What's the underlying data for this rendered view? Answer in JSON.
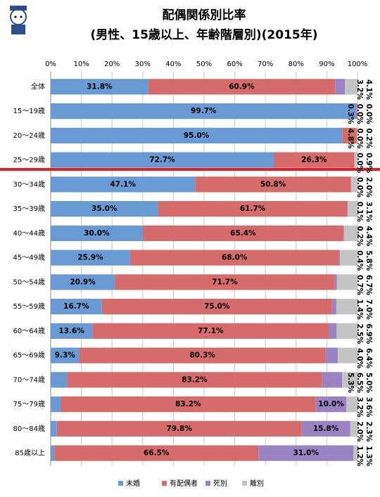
{
  "chart_data": {
    "type": "stacked-bar-horizontal",
    "title": "配偶関係別比率",
    "subtitle": "(男性、15歳以上、年齢階層別)(2015年)",
    "categories": [
      "全体",
      "15～19歳",
      "20～24歳",
      "25～29歳",
      "30～34歳",
      "35～39歳",
      "40～44歳",
      "45～49歳",
      "50～54歳",
      "55～59歳",
      "60～64歳",
      "65～69歳",
      "70～74歳",
      "75～79歳",
      "80～84歳",
      "85歳以上"
    ],
    "series": [
      {
        "name": "未婚",
        "color": "#6a9ad4",
        "values": [
          31.8,
          99.7,
          95.0,
          72.7,
          47.1,
          35.0,
          30.0,
          25.9,
          20.9,
          16.7,
          13.6,
          9.3,
          5.3,
          3.2,
          2.0,
          1.2
        ],
        "value_labels": [
          "31.8%",
          "99.7%",
          "95.0%",
          "72.7%",
          "47.1%",
          "35.0%",
          "30.0%",
          "25.9%",
          "20.9%",
          "16.7%",
          "13.6%",
          "9.3%",
          "5.3%",
          "3.2%",
          "2.0%",
          "1.2%"
        ]
      },
      {
        "name": "有配偶者",
        "color": "#d66b6b",
        "values": [
          60.9,
          0.3,
          4.8,
          26.3,
          50.8,
          61.7,
          65.4,
          68.0,
          71.7,
          75.0,
          77.1,
          80.3,
          83.2,
          83.2,
          79.8,
          66.5
        ],
        "value_labels": [
          "60.9%",
          "0.3%",
          "4.8%",
          "26.3%",
          "50.8%",
          "61.7%",
          "65.4%",
          "68.0%",
          "71.7%",
          "75.0%",
          "77.1%",
          "80.3%",
          "83.2%",
          "83.2%",
          "79.8%",
          "66.5%"
        ]
      },
      {
        "name": "死別",
        "color": "#9a83c2",
        "values": [
          3.2,
          0.0,
          0.0,
          0.0,
          0.0,
          0.1,
          0.2,
          0.4,
          0.7,
          1.4,
          2.5,
          4.0,
          6.5,
          10.0,
          15.8,
          31.0
        ],
        "value_labels": [
          "3.2%",
          "0.0%",
          "0.0%",
          "0.0%",
          "0.0%",
          "0.1%",
          "0.2%",
          "0.4%",
          "0.7%",
          "1.4%",
          "2.5%",
          "4.0%",
          "6.5%",
          "10.0%",
          "15.8%",
          "31.0%"
        ]
      },
      {
        "name": "離別",
        "color": "#c4c4c4",
        "values": [
          4.1,
          0.0,
          0.2,
          0.9,
          2.0,
          3.1,
          4.4,
          5.8,
          6.7,
          7.0,
          6.9,
          6.4,
          5.0,
          3.6,
          2.3,
          1.3
        ],
        "value_labels": [
          "4.1%",
          "0.0%",
          "0.2%",
          "0.9%",
          "2.0%",
          "3.1%",
          "4.4%",
          "5.8%",
          "6.7%",
          "7.0%",
          "6.9%",
          "6.4%",
          "5.0%",
          "3.6%",
          "2.3%",
          "1.3%"
        ]
      }
    ],
    "xlim": [
      0,
      100
    ],
    "xticks": [
      {
        "value": 0,
        "label": "0%"
      },
      {
        "value": 10,
        "label": "10%"
      },
      {
        "value": 20,
        "label": "20%"
      },
      {
        "value": 30,
        "label": "30%"
      },
      {
        "value": 40,
        "label": "40%"
      },
      {
        "value": 50,
        "label": "50%"
      },
      {
        "value": 60,
        "label": "60%"
      },
      {
        "value": 70,
        "label": "70%"
      },
      {
        "value": 80,
        "label": "80%"
      },
      {
        "value": 90,
        "label": "90%"
      },
      {
        "value": 100,
        "label": "100%"
      }
    ],
    "grid": true,
    "legend": "bottom"
  }
}
